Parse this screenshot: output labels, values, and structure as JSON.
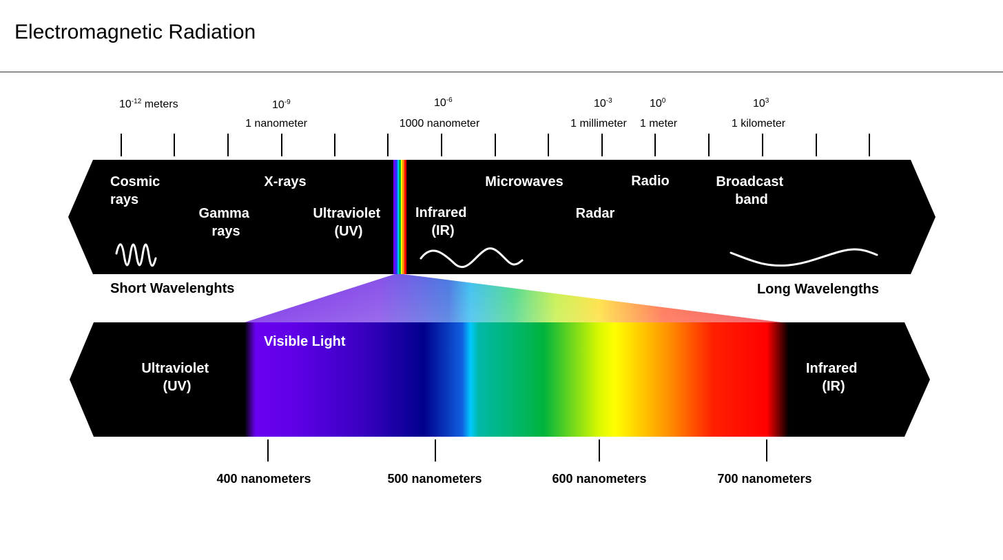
{
  "title": "Electromagnetic Radiation",
  "scale": {
    "ticks": [
      {
        "base": "10",
        "exp": "-12",
        "suffix": " meters",
        "name": ""
      },
      {
        "base": "10",
        "exp": "-9",
        "suffix": "",
        "name": "1 nanometer"
      },
      {
        "base": "10",
        "exp": "-6",
        "suffix": "",
        "name": "1000 nanometer"
      },
      {
        "base": "10",
        "exp": "-3",
        "suffix": "",
        "name": "1 millimeter"
      },
      {
        "base": "10",
        "exp": "0",
        "suffix": "",
        "name": "1 meter"
      },
      {
        "base": "10",
        "exp": "3",
        "suffix": "",
        "name": "1 kilometer"
      }
    ]
  },
  "spectrum_bands": {
    "cosmic": [
      "Cosmic",
      "rays"
    ],
    "gamma": [
      "Gamma",
      "rays"
    ],
    "xrays": [
      "X-rays"
    ],
    "uv": [
      "Ultraviolet",
      "(UV)"
    ],
    "infrared": [
      "Infrared",
      "(IR)"
    ],
    "microwaves": [
      "Microwaves"
    ],
    "radar": [
      "Radar"
    ],
    "radio": [
      "Radio"
    ],
    "broadcast": [
      "Broadcast",
      "band"
    ]
  },
  "wavelength_labels": {
    "short": "Short Wavelenghts",
    "long": "Long Wavelengths"
  },
  "visible": {
    "title": "Visible Light",
    "uv": [
      "Ultraviolet",
      "(UV)"
    ],
    "ir": [
      "Infrared",
      "(IR)"
    ],
    "nm_ticks": [
      "400 nanometers",
      "500 nanometers",
      "600 nanometers",
      "700 nanometers"
    ]
  },
  "colors": {
    "band_fill": "#000000",
    "violet": "#6a00f0",
    "blue": "#00008c",
    "cyan": "#00c8ff",
    "green": "#00b43c",
    "yellow": "#ffff00",
    "orange": "#ff8c00",
    "red": "#ff0000"
  }
}
